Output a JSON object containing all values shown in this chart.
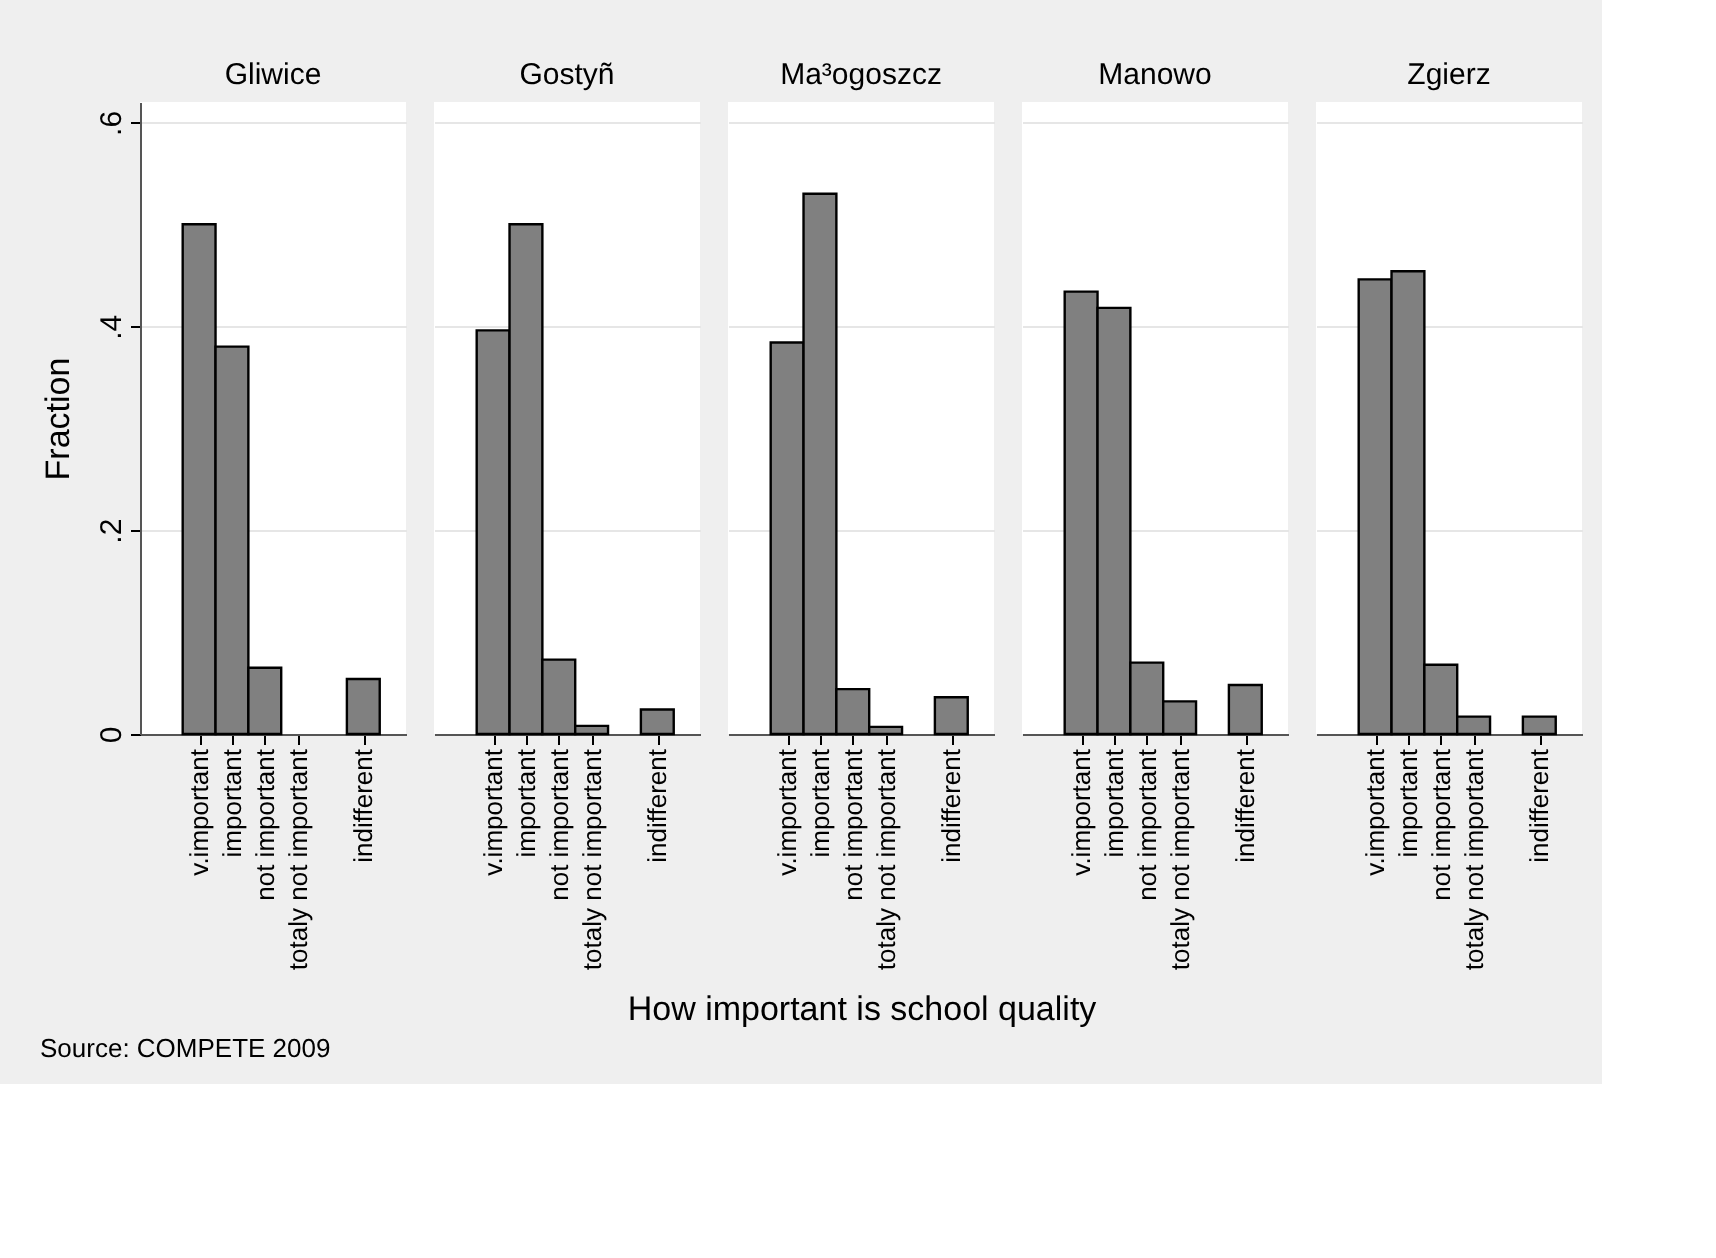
{
  "chart_data": [
    {
      "type": "bar",
      "title": "Gliwice",
      "ylabel": "Fraction",
      "categories": [
        "v.important",
        "important",
        "not important",
        "totaly not important",
        null,
        "indifferent"
      ],
      "values": [
        0.5,
        0.38,
        0.065,
        0,
        0,
        0.054
      ],
      "color": "#808080",
      "ylim": [
        0,
        0.62
      ],
      "yticks": [
        0,
        {
          "value": 0.2,
          "label": ".2"
        },
        {
          "value": 0.4,
          "label": ".4"
        },
        {
          "value": 0.6,
          "label": ".6"
        }
      ],
      "grid": "y",
      "annotations": [
        "Source:  COMPETE 2009"
      ]
    },
    {
      "type": "bar",
      "title": "Gostyñ",
      "categories": [
        "v.important",
        "important",
        "not important",
        "totaly not important",
        null,
        "indifferent"
      ],
      "values": [
        0.396,
        0.5,
        0.073,
        0.008,
        0,
        0.024
      ],
      "color": "#808080",
      "ylim": [
        0,
        0.62
      ],
      "yticks": [
        0,
        0.2,
        0.4,
        0.6
      ],
      "grid": "y",
      "tick_labels": "x"
    },
    {
      "type": "bar",
      "title": "Ma³ogoszcz",
      "xlabel": "How important is school quality",
      "categories": [
        "v.important",
        "important",
        "not important",
        "totaly not important",
        null,
        "indifferent"
      ],
      "values": [
        0.384,
        0.53,
        0.044,
        0.007,
        0,
        0.036
      ],
      "color": "#808080",
      "ylim": [
        0,
        0.62
      ],
      "yticks": [
        0,
        0.2,
        0.4,
        0.6
      ],
      "grid": "y",
      "tick_labels": "x"
    },
    {
      "type": "bar",
      "title": "Manowo",
      "categories": [
        "v.important",
        "important",
        "not important",
        "totaly not important",
        null,
        "indifferent"
      ],
      "values": [
        0.434,
        0.418,
        0.07,
        0.032,
        0,
        0.048
      ],
      "color": "#808080",
      "ylim": [
        0,
        0.62
      ],
      "yticks": [
        0,
        0.2,
        0.4,
        0.6
      ],
      "grid": "y",
      "tick_labels": "x"
    },
    {
      "type": "bar",
      "title": "Zgierz",
      "categories": [
        "v.important",
        "important",
        "not important",
        "totaly not important",
        null,
        "indifferent"
      ],
      "values": [
        0.446,
        0.454,
        0.068,
        0.017,
        0,
        0.017
      ],
      "color": "#808080",
      "ylim": [
        0,
        0.62
      ],
      "yticks": [
        0,
        0.2,
        0.4,
        0.6
      ],
      "grid": "y",
      "tick_labels": "x"
    }
  ]
}
